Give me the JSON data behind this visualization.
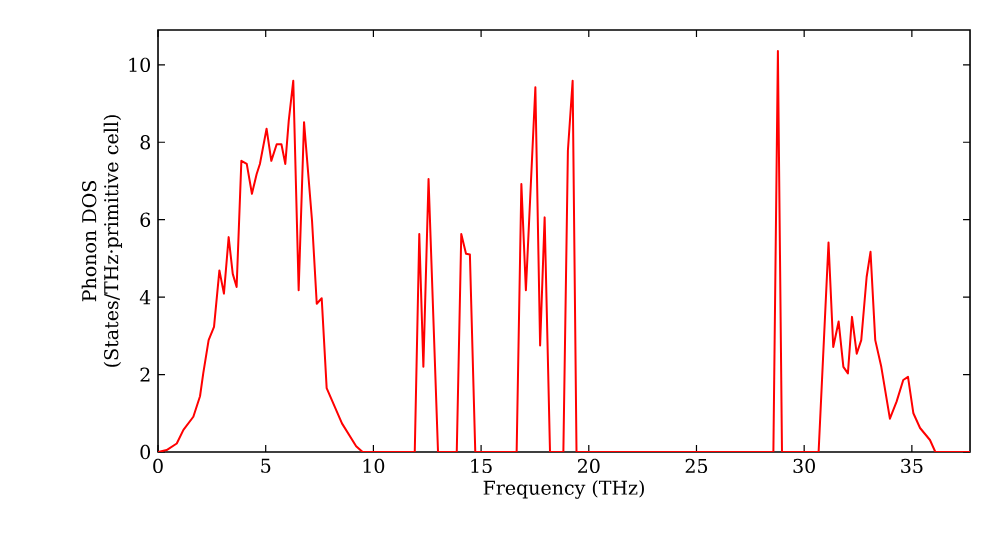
{
  "chart_data": {
    "type": "line",
    "xlabel": "Frequency (THz)",
    "ylabel": "Phonon DOS (States/THz·primitive cell)",
    "x": [
      0,
      0.4,
      0.87,
      1.18,
      1.64,
      1.95,
      2.1,
      2.35,
      2.6,
      2.85,
      3.06,
      3.28,
      3.47,
      3.65,
      3.87,
      4.12,
      4.36,
      4.58,
      4.73,
      5.04,
      5.26,
      5.51,
      5.73,
      5.91,
      6.07,
      6.28,
      6.53,
      6.78,
      7.15,
      7.37,
      7.6,
      7.83,
      8.54,
      9.2,
      9.5,
      11.92,
      12.13,
      12.32,
      12.56,
      13.0,
      13.87,
      14.08,
      14.3,
      14.48,
      14.73,
      16.65,
      16.87,
      17.08,
      17.52,
      17.74,
      17.95,
      18.2,
      18.82,
      19.03,
      19.25,
      19.43,
      28.57,
      28.78,
      28.97,
      30.67,
      31.13,
      31.35,
      31.6,
      31.82,
      32.03,
      32.22,
      32.44,
      32.65,
      32.9,
      33.08,
      33.3,
      33.58,
      33.98,
      34.29,
      34.6,
      34.82,
      35.07,
      35.38,
      35.84,
      36.09,
      37.7
    ],
    "series": [
      {
        "color": "#ff0000",
        "values": [
          0,
          0.05,
          0.22,
          0.57,
          0.91,
          1.44,
          2.03,
          2.89,
          3.23,
          4.69,
          4.09,
          5.55,
          4.6,
          4.26,
          7.52,
          7.44,
          6.67,
          7.18,
          7.44,
          8.35,
          7.52,
          7.95,
          7.95,
          7.44,
          8.56,
          9.59,
          4.18,
          8.52,
          5.98,
          3.83,
          3.97,
          1.65,
          0.74,
          0.15,
          0,
          0,
          5.63,
          2.2,
          7.05,
          0,
          0,
          5.63,
          5.12,
          5.1,
          0,
          0,
          6.92,
          4.18,
          9.42,
          2.75,
          6.06,
          0,
          0,
          7.78,
          9.59,
          0,
          0,
          10.36,
          0,
          0,
          5.41,
          2.71,
          3.37,
          2.2,
          2.03,
          3.49,
          2.54,
          2.89,
          4.52,
          5.17,
          2.89,
          2.2,
          0.86,
          1.3,
          1.86,
          1.94,
          1.0,
          0.62,
          0.31,
          0,
          0
        ]
      }
    ],
    "xlim": [
      0,
      37.7
    ],
    "ylim": [
      0,
      10.9
    ],
    "xticks": [
      0,
      5,
      10,
      15,
      20,
      25,
      30,
      35
    ],
    "yticks": [
      0,
      2,
      4,
      6,
      8,
      10
    ],
    "grid": false,
    "marker": "none",
    "line_style": "solid"
  }
}
